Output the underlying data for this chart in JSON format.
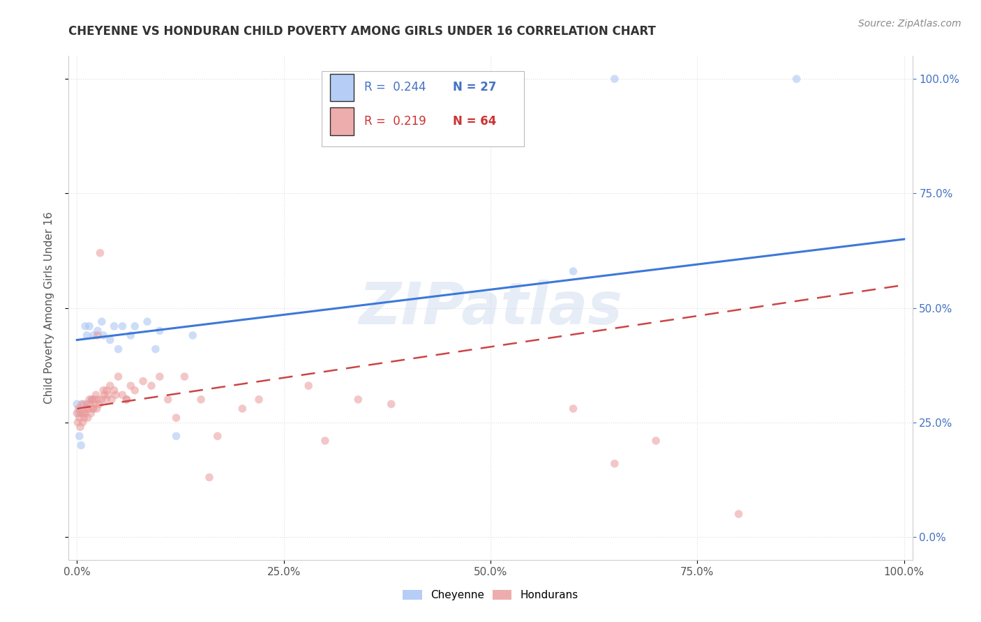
{
  "title": "CHEYENNE VS HONDURAN CHILD POVERTY AMONG GIRLS UNDER 16 CORRELATION CHART",
  "source": "Source: ZipAtlas.com",
  "ylabel": "Child Poverty Among Girls Under 16",
  "watermark": "ZIPatlas",
  "legend_r1": "0.244",
  "legend_n1": "27",
  "legend_r2": "0.219",
  "legend_n2": "64",
  "cheyenne_color": "#a4c2f4",
  "honduran_color": "#ea9999",
  "cheyenne_line_color": "#3c78d8",
  "honduran_line_color": "#cc4444",
  "cheyenne_x": [
    0.0,
    0.002,
    0.003,
    0.005,
    0.008,
    0.01,
    0.012,
    0.015,
    0.018,
    0.02,
    0.025,
    0.03,
    0.032,
    0.04,
    0.045,
    0.05,
    0.055,
    0.065,
    0.07,
    0.085,
    0.095,
    0.1,
    0.12,
    0.14,
    0.6,
    0.65,
    0.87
  ],
  "cheyenne_y": [
    0.29,
    0.27,
    0.22,
    0.2,
    0.29,
    0.46,
    0.44,
    0.46,
    0.3,
    0.44,
    0.45,
    0.47,
    0.44,
    0.43,
    0.46,
    0.41,
    0.46,
    0.44,
    0.46,
    0.47,
    0.41,
    0.45,
    0.22,
    0.44,
    0.58,
    1.0,
    1.0
  ],
  "honduran_x": [
    0.0,
    0.001,
    0.002,
    0.003,
    0.004,
    0.005,
    0.006,
    0.007,
    0.008,
    0.009,
    0.01,
    0.011,
    0.012,
    0.013,
    0.014,
    0.015,
    0.016,
    0.017,
    0.018,
    0.019,
    0.02,
    0.021,
    0.022,
    0.023,
    0.024,
    0.025,
    0.027,
    0.028,
    0.03,
    0.032,
    0.033,
    0.035,
    0.036,
    0.038,
    0.04,
    0.042,
    0.045,
    0.047,
    0.05,
    0.055,
    0.06,
    0.065,
    0.07,
    0.08,
    0.09,
    0.1,
    0.11,
    0.12,
    0.13,
    0.15,
    0.16,
    0.17,
    0.2,
    0.22,
    0.28,
    0.3,
    0.34,
    0.38,
    0.6,
    0.65,
    0.7,
    0.8,
    0.025,
    0.06
  ],
  "honduran_y": [
    0.27,
    0.25,
    0.28,
    0.26,
    0.24,
    0.27,
    0.29,
    0.25,
    0.27,
    0.26,
    0.27,
    0.28,
    0.29,
    0.26,
    0.28,
    0.3,
    0.29,
    0.27,
    0.3,
    0.28,
    0.28,
    0.3,
    0.29,
    0.31,
    0.28,
    0.3,
    0.29,
    0.62,
    0.3,
    0.32,
    0.31,
    0.3,
    0.32,
    0.31,
    0.33,
    0.3,
    0.32,
    0.31,
    0.35,
    0.31,
    0.3,
    0.33,
    0.32,
    0.34,
    0.33,
    0.35,
    0.3,
    0.26,
    0.35,
    0.3,
    0.13,
    0.22,
    0.28,
    0.3,
    0.33,
    0.21,
    0.3,
    0.29,
    0.28,
    0.16,
    0.21,
    0.05,
    0.44,
    0.3
  ],
  "cheyenne_line": [
    0.43,
    0.65
  ],
  "honduran_line": [
    0.28,
    0.55
  ],
  "xlim": [
    -0.01,
    1.01
  ],
  "ylim": [
    -0.05,
    1.05
  ],
  "xticks": [
    0.0,
    0.25,
    0.5,
    0.75,
    1.0
  ],
  "xticklabels": [
    "0.0%",
    "25.0%",
    "50.0%",
    "75.0%",
    "100.0%"
  ],
  "yticks": [
    0.0,
    0.25,
    0.5,
    0.75,
    1.0
  ],
  "yticklabels": [
    "0.0%",
    "25.0%",
    "50.0%",
    "75.0%",
    "100.0%"
  ],
  "marker_size": 70,
  "marker_alpha": 0.55,
  "background_color": "#ffffff",
  "grid_color": "#dddddd",
  "title_color": "#333333",
  "source_color": "#888888",
  "ylabel_color": "#555555",
  "ytick_color": "#4472c4",
  "xtick_color": "#555555"
}
